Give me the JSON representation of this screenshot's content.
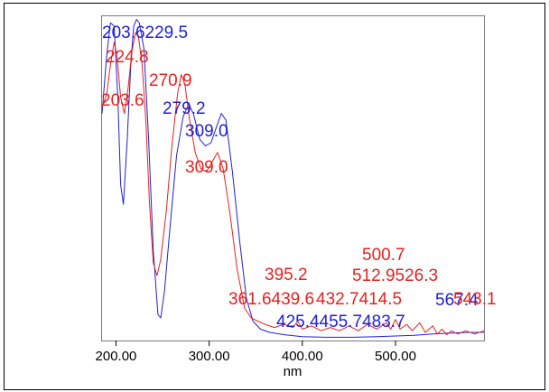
{
  "chart_data": {
    "type": "line",
    "xlabel": "nm",
    "ylabel": "",
    "xlim": [
      185,
      595
    ],
    "ylim": [
      0,
      1
    ],
    "x_ticks": [
      {
        "value": 200,
        "label": "200.00"
      },
      {
        "value": 300,
        "label": "300.00"
      },
      {
        "value": 400,
        "label": "400.00"
      },
      {
        "value": 500,
        "label": "500.00"
      }
    ],
    "grid": false,
    "legend": "none",
    "series": [
      {
        "color": "#2020d8",
        "points": [
          [
            185,
            0.7
          ],
          [
            190,
            0.88
          ],
          [
            194,
            0.98
          ],
          [
            198,
            0.97
          ],
          [
            202,
            0.75
          ],
          [
            205,
            0.48
          ],
          [
            208,
            0.42
          ],
          [
            212,
            0.62
          ],
          [
            216,
            0.86
          ],
          [
            219,
            0.97
          ],
          [
            222,
            0.99
          ],
          [
            225,
            0.98
          ],
          [
            230,
            0.9
          ],
          [
            235,
            0.62
          ],
          [
            240,
            0.28
          ],
          [
            245,
            0.08
          ],
          [
            248,
            0.07
          ],
          [
            252,
            0.15
          ],
          [
            258,
            0.35
          ],
          [
            265,
            0.57
          ],
          [
            272,
            0.69
          ],
          [
            278,
            0.73
          ],
          [
            283,
            0.7
          ],
          [
            290,
            0.62
          ],
          [
            296,
            0.6
          ],
          [
            302,
            0.61
          ],
          [
            308,
            0.66
          ],
          [
            313,
            0.7
          ],
          [
            318,
            0.68
          ],
          [
            325,
            0.52
          ],
          [
            333,
            0.3
          ],
          [
            340,
            0.13
          ],
          [
            347,
            0.06
          ],
          [
            355,
            0.035
          ],
          [
            365,
            0.025
          ],
          [
            380,
            0.018
          ],
          [
            400,
            0.012
          ],
          [
            425,
            0.01
          ],
          [
            455,
            0.01
          ],
          [
            480,
            0.012
          ],
          [
            500,
            0.014
          ],
          [
            520,
            0.016
          ],
          [
            540,
            0.02
          ],
          [
            560,
            0.023
          ],
          [
            580,
            0.025
          ],
          [
            595,
            0.025
          ]
        ]
      },
      {
        "color": "#e82020",
        "points": [
          [
            185,
            0.72
          ],
          [
            190,
            0.76
          ],
          [
            194,
            0.85
          ],
          [
            198,
            0.92
          ],
          [
            201,
            0.88
          ],
          [
            205,
            0.75
          ],
          [
            209,
            0.7
          ],
          [
            213,
            0.78
          ],
          [
            217,
            0.89
          ],
          [
            221,
            0.95
          ],
          [
            224,
            0.94
          ],
          [
            228,
            0.85
          ],
          [
            232,
            0.68
          ],
          [
            236,
            0.42
          ],
          [
            240,
            0.24
          ],
          [
            244,
            0.2
          ],
          [
            248,
            0.25
          ],
          [
            254,
            0.4
          ],
          [
            260,
            0.6
          ],
          [
            266,
            0.76
          ],
          [
            270,
            0.82
          ],
          [
            274,
            0.79
          ],
          [
            279,
            0.68
          ],
          [
            285,
            0.58
          ],
          [
            291,
            0.53
          ],
          [
            297,
            0.52
          ],
          [
            303,
            0.55
          ],
          [
            309,
            0.58
          ],
          [
            315,
            0.53
          ],
          [
            322,
            0.4
          ],
          [
            330,
            0.22
          ],
          [
            338,
            0.1
          ],
          [
            345,
            0.07
          ],
          [
            352,
            0.06
          ],
          [
            360,
            0.05
          ],
          [
            370,
            0.04
          ],
          [
            380,
            0.05
          ],
          [
            390,
            0.04
          ],
          [
            395,
            0.06
          ],
          [
            400,
            0.035
          ],
          [
            410,
            0.045
          ],
          [
            420,
            0.03
          ],
          [
            430,
            0.04
          ],
          [
            440,
            0.03
          ],
          [
            450,
            0.045
          ],
          [
            460,
            0.03
          ],
          [
            470,
            0.05
          ],
          [
            480,
            0.035
          ],
          [
            490,
            0.055
          ],
          [
            495,
            0.035
          ],
          [
            500,
            0.065
          ],
          [
            505,
            0.035
          ],
          [
            512,
            0.05
          ],
          [
            518,
            0.03
          ],
          [
            526,
            0.055
          ],
          [
            532,
            0.025
          ],
          [
            540,
            0.045
          ],
          [
            545,
            0.02
          ],
          [
            550,
            0.035
          ],
          [
            555,
            0.018
          ],
          [
            560,
            0.03
          ],
          [
            567,
            0.02
          ],
          [
            575,
            0.03
          ],
          [
            585,
            0.02
          ],
          [
            595,
            0.03
          ]
        ]
      }
    ],
    "annotations": [
      {
        "text": "203.6229.5",
        "color": "#2020d8"
      },
      {
        "text": "224.8",
        "color": "#e82020"
      },
      {
        "text": "270.9",
        "color": "#e82020"
      },
      {
        "text": "203.6",
        "color": "#e82020"
      },
      {
        "text": "279.2",
        "color": "#2020d8"
      },
      {
        "text": "309.0",
        "color": "#2020d8"
      },
      {
        "text": "309.0",
        "color": "#e82020"
      },
      {
        "text": "500.7",
        "color": "#e82020"
      },
      {
        "text": "395.2",
        "color": "#e82020"
      },
      {
        "text": "512.9526.3",
        "color": "#e82020"
      },
      {
        "text": "361.6439.6",
        "color": "#e82020"
      },
      {
        "text": "432.7414.5",
        "color": "#e82020"
      },
      {
        "text": "567.4",
        "color": "#2020d8"
      },
      {
        "text": "543.1",
        "color": "#e82020"
      },
      {
        "text": "425.4455.7483.7",
        "color": "#2020d8"
      }
    ]
  }
}
